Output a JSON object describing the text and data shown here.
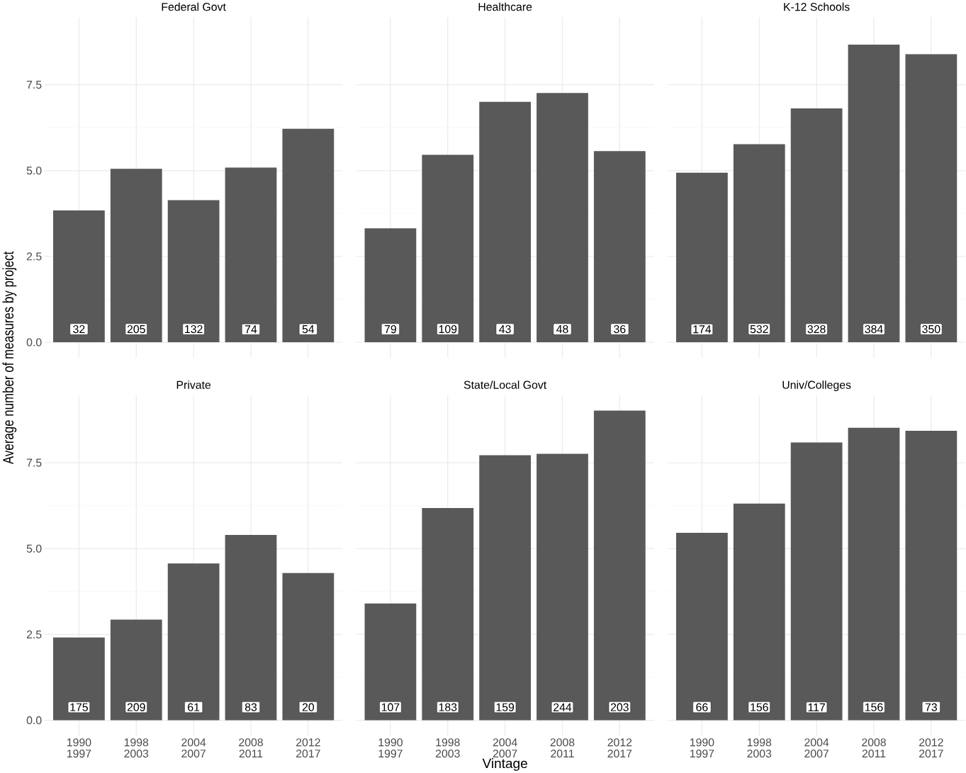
{
  "chart_data": [
    {
      "type": "bar",
      "title": "Federal Govt",
      "ylabel": "Average number of measures by project",
      "categories": [
        "1990 1997",
        "1998 2003",
        "2004 2007",
        "2008 2011",
        "2012 2017"
      ],
      "values": [
        3.84,
        5.05,
        4.14,
        5.09,
        6.22
      ],
      "annotations": [
        {
          "text": "32",
          "x": "1990 1997",
          "y": 0
        },
        {
          "text": "205",
          "x": "1998 2003",
          "y": 0
        },
        {
          "text": "132",
          "x": "2004 2007",
          "y": 0
        },
        {
          "text": "74",
          "x": "2008 2011",
          "y": 0
        },
        {
          "text": "54",
          "x": "2012 2017",
          "y": 0
        }
      ],
      "color": "#595959",
      "ylim": [
        -0.45,
        9.47
      ],
      "yticks": [
        {
          "value": 0,
          "label": "0.0"
        },
        {
          "value": 2.5,
          "label": "2.5"
        },
        {
          "value": 5,
          "label": "5.0"
        },
        {
          "value": 7.5,
          "label": "7.5"
        }
      ],
      "grid": true,
      "tick_labels": "y"
    },
    {
      "type": "bar",
      "title": "Healthcare",
      "categories": [
        "1990 1997",
        "1998 2003",
        "2004 2007",
        "2008 2011",
        "2012 2017"
      ],
      "values": [
        3.32,
        5.46,
        7.0,
        7.26,
        5.57
      ],
      "annotations": [
        {
          "text": "79",
          "x": "1990 1997",
          "y": 0
        },
        {
          "text": "109",
          "x": "1998 2003",
          "y": 0
        },
        {
          "text": "43",
          "x": "2004 2007",
          "y": 0
        },
        {
          "text": "48",
          "x": "2008 2011",
          "y": 0
        },
        {
          "text": "36",
          "x": "2012 2017",
          "y": 0
        }
      ],
      "color": "#595959",
      "ylim": [
        -0.45,
        9.47
      ],
      "yticks": [
        0,
        2.5,
        5,
        7.5
      ],
      "grid": true,
      "tick_labels": false
    },
    {
      "type": "bar",
      "title": "K-12 Schools",
      "categories": [
        "1990 1997",
        "1998 2003",
        "2004 2007",
        "2008 2011",
        "2012 2017"
      ],
      "values": [
        4.94,
        5.77,
        6.81,
        8.67,
        8.39
      ],
      "annotations": [
        {
          "text": "174",
          "x": "1990 1997",
          "y": 0
        },
        {
          "text": "532",
          "x": "1998 2003",
          "y": 0
        },
        {
          "text": "328",
          "x": "2004 2007",
          "y": 0
        },
        {
          "text": "384",
          "x": "2008 2011",
          "y": 0
        },
        {
          "text": "350",
          "x": "2012 2017",
          "y": 0
        }
      ],
      "color": "#595959",
      "ylim": [
        -0.45,
        9.47
      ],
      "yticks": [
        0,
        2.5,
        5,
        7.5
      ],
      "grid": true,
      "tick_labels": false
    },
    {
      "type": "bar",
      "title": "Private",
      "categories": [
        "1990 1997",
        "1998 2003",
        "2004 2007",
        "2008 2011",
        "2012 2017"
      ],
      "values": [
        2.41,
        2.93,
        4.57,
        5.4,
        4.29
      ],
      "annotations": [
        {
          "text": "175",
          "x": "1990 1997",
          "y": 0
        },
        {
          "text": "209",
          "x": "1998 2003",
          "y": 0
        },
        {
          "text": "61",
          "x": "2004 2007",
          "y": 0
        },
        {
          "text": "83",
          "x": "2008 2011",
          "y": 0
        },
        {
          "text": "20",
          "x": "2012 2017",
          "y": 0
        }
      ],
      "color": "#595959",
      "ylim": [
        -0.45,
        9.47
      ],
      "yticks": [
        {
          "value": 0,
          "label": "0.0"
        },
        {
          "value": 2.5,
          "label": "2.5"
        },
        {
          "value": 5,
          "label": "5.0"
        },
        {
          "value": 7.5,
          "label": "7.5"
        }
      ],
      "grid": true
    },
    {
      "type": "bar",
      "title": "State/Local Govt",
      "xlabel": "Vintage",
      "categories": [
        "1990 1997",
        "1998 2003",
        "2004 2007",
        "2008 2011",
        "2012 2017"
      ],
      "values": [
        3.4,
        6.18,
        7.72,
        7.76,
        9.02
      ],
      "annotations": [
        {
          "text": "107",
          "x": "1990 1997",
          "y": 0
        },
        {
          "text": "183",
          "x": "1998 2003",
          "y": 0
        },
        {
          "text": "159",
          "x": "2004 2007",
          "y": 0
        },
        {
          "text": "244",
          "x": "2008 2011",
          "y": 0
        },
        {
          "text": "203",
          "x": "2012 2017",
          "y": 0
        }
      ],
      "color": "#595959",
      "ylim": [
        -0.45,
        9.47
      ],
      "yticks": [
        0,
        2.5,
        5,
        7.5
      ],
      "grid": true,
      "tick_labels": "x"
    },
    {
      "type": "bar",
      "title": "Univ/Colleges",
      "categories": [
        "1990 1997",
        "1998 2003",
        "2004 2007",
        "2008 2011",
        "2012 2017"
      ],
      "values": [
        5.46,
        6.31,
        8.09,
        8.52,
        8.43
      ],
      "annotations": [
        {
          "text": "66",
          "x": "1990 1997",
          "y": 0
        },
        {
          "text": "156",
          "x": "1998 2003",
          "y": 0
        },
        {
          "text": "117",
          "x": "2004 2007",
          "y": 0
        },
        {
          "text": "156",
          "x": "2008 2011",
          "y": 0
        },
        {
          "text": "73",
          "x": "2012 2017",
          "y": 0
        }
      ],
      "color": "#595959",
      "ylim": [
        -0.45,
        9.47
      ],
      "yticks": [
        0,
        2.5,
        5,
        7.5
      ],
      "grid": true,
      "tick_labels": "x"
    }
  ]
}
